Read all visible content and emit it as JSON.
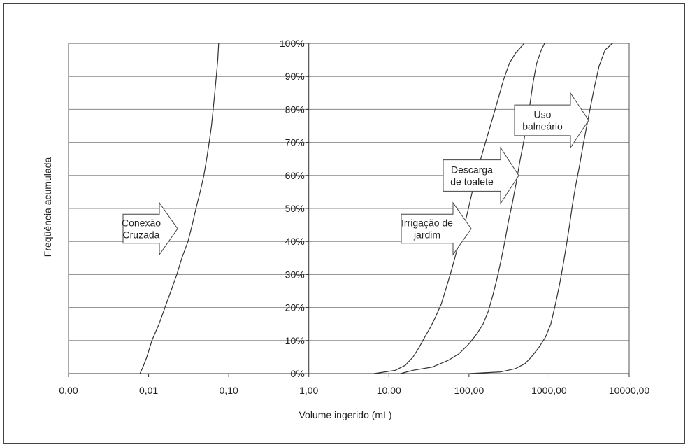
{
  "chart_data": {
    "type": "line",
    "xlabel": "Volume ingerido (mL)",
    "ylabel": "Freqüência acumulada",
    "x_scale": "log",
    "xlim": [
      0.001,
      10000
    ],
    "ylim": [
      0,
      100
    ],
    "x_ticks": [
      {
        "value": 0.001,
        "label": "0,00"
      },
      {
        "value": 0.01,
        "label": "0,01"
      },
      {
        "value": 0.1,
        "label": "0,10"
      },
      {
        "value": 1,
        "label": "1,00"
      },
      {
        "value": 10,
        "label": "10,00"
      },
      {
        "value": 100,
        "label": "100,00"
      },
      {
        "value": 1000,
        "label": "1000,00"
      },
      {
        "value": 10000,
        "label": "10000,00"
      }
    ],
    "y_ticks": [
      {
        "value": 0,
        "label": "0%"
      },
      {
        "value": 10,
        "label": "10%"
      },
      {
        "value": 20,
        "label": "20%"
      },
      {
        "value": 30,
        "label": "30%"
      },
      {
        "value": 40,
        "label": "40%"
      },
      {
        "value": 50,
        "label": "50%"
      },
      {
        "value": 60,
        "label": "60%"
      },
      {
        "value": 70,
        "label": "70%"
      },
      {
        "value": 80,
        "label": "80%"
      },
      {
        "value": 90,
        "label": "90%"
      },
      {
        "value": 100,
        "label": "100%"
      }
    ],
    "grid": "horizontal",
    "series": [
      {
        "points": [
          [
            0.0078,
            0
          ],
          [
            0.0085,
            2
          ],
          [
            0.0095,
            5
          ],
          [
            0.011,
            10
          ],
          [
            0.0135,
            15
          ],
          [
            0.016,
            20
          ],
          [
            0.019,
            25
          ],
          [
            0.0225,
            30
          ],
          [
            0.026,
            35
          ],
          [
            0.031,
            40
          ],
          [
            0.035,
            45
          ],
          [
            0.039,
            50
          ],
          [
            0.044,
            55
          ],
          [
            0.049,
            60
          ],
          [
            0.053,
            65
          ],
          [
            0.057,
            70
          ],
          [
            0.061,
            75
          ],
          [
            0.064,
            80
          ],
          [
            0.067,
            85
          ],
          [
            0.07,
            90
          ],
          [
            0.073,
            95
          ],
          [
            0.075,
            100
          ]
        ]
      },
      {
        "points": [
          [
            6.5,
            0
          ],
          [
            9,
            0.5
          ],
          [
            12,
            1
          ],
          [
            16,
            2.5
          ],
          [
            20,
            5
          ],
          [
            24,
            8
          ],
          [
            28,
            11
          ],
          [
            33,
            14
          ],
          [
            38,
            17
          ],
          [
            45,
            21
          ],
          [
            52,
            26
          ],
          [
            60,
            31
          ],
          [
            70,
            37
          ],
          [
            80,
            42
          ],
          [
            92,
            47
          ],
          [
            105,
            53
          ],
          [
            120,
            59
          ],
          [
            140,
            65
          ],
          [
            165,
            71
          ],
          [
            195,
            77
          ],
          [
            230,
            83
          ],
          [
            270,
            89
          ],
          [
            320,
            94
          ],
          [
            380,
            97
          ],
          [
            450,
            99
          ],
          [
            490,
            100
          ]
        ]
      },
      {
        "points": [
          [
            14,
            0
          ],
          [
            20,
            1
          ],
          [
            35,
            2
          ],
          [
            55,
            4
          ],
          [
            75,
            6
          ],
          [
            100,
            9
          ],
          [
            125,
            12
          ],
          [
            150,
            15
          ],
          [
            175,
            19
          ],
          [
            200,
            24
          ],
          [
            225,
            29
          ],
          [
            250,
            34
          ],
          [
            280,
            40
          ],
          [
            310,
            46
          ],
          [
            350,
            52
          ],
          [
            390,
            58
          ],
          [
            430,
            64
          ],
          [
            480,
            70
          ],
          [
            530,
            76
          ],
          [
            580,
            82
          ],
          [
            630,
            88
          ],
          [
            700,
            94
          ],
          [
            800,
            98
          ],
          [
            880,
            100
          ]
        ]
      },
      {
        "points": [
          [
            100,
            0
          ],
          [
            250,
            0.5
          ],
          [
            380,
            1.5
          ],
          [
            500,
            3
          ],
          [
            600,
            5
          ],
          [
            750,
            8
          ],
          [
            900,
            11
          ],
          [
            1050,
            15
          ],
          [
            1200,
            21
          ],
          [
            1350,
            27
          ],
          [
            1500,
            33
          ],
          [
            1650,
            39
          ],
          [
            1800,
            45
          ],
          [
            1950,
            51
          ],
          [
            2150,
            57
          ],
          [
            2400,
            63
          ],
          [
            2650,
            69
          ],
          [
            2950,
            75
          ],
          [
            3300,
            81
          ],
          [
            3700,
            87
          ],
          [
            4200,
            93
          ],
          [
            5000,
            98
          ],
          [
            6200,
            100
          ]
        ]
      }
    ],
    "annotations": [
      {
        "name": "conexao-cruzada",
        "lines": [
          "Conexão",
          "Cruzada"
        ]
      },
      {
        "name": "irrigacao-de-jardim",
        "lines": [
          "Irrigação de",
          "jardim"
        ]
      },
      {
        "name": "descarga-de-toalete",
        "lines": [
          "Descarga",
          "de toalete"
        ]
      },
      {
        "name": "uso-balneario",
        "lines": [
          "Uso",
          "balneário"
        ]
      }
    ]
  }
}
